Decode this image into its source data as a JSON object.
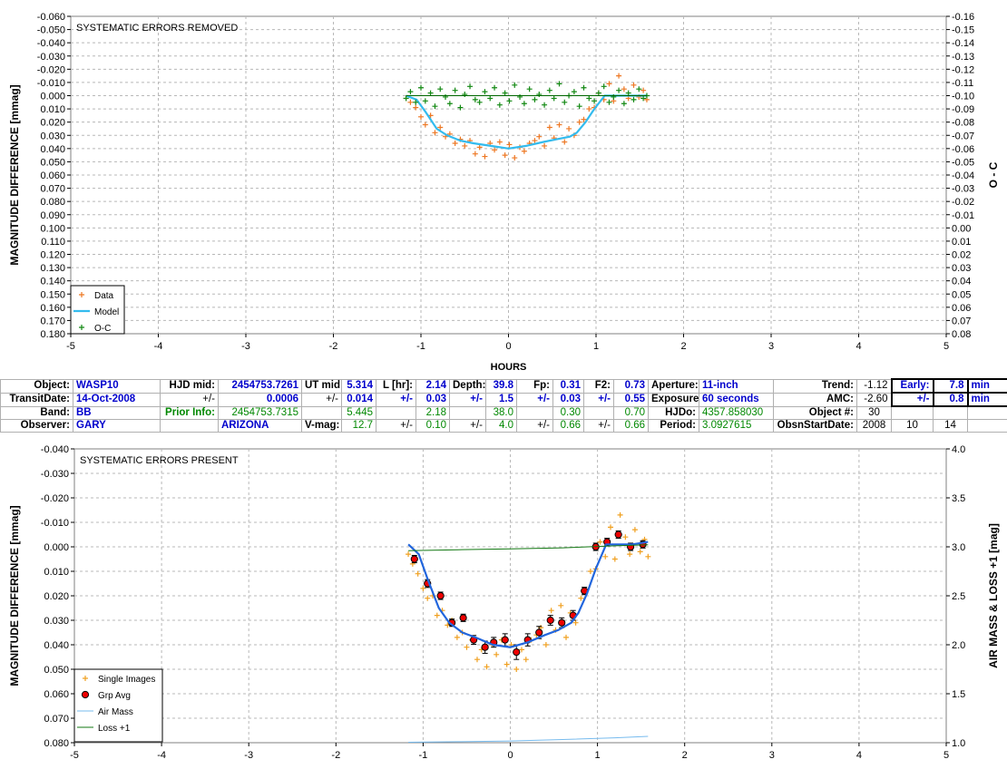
{
  "chart_data": [
    {
      "type": "scatter",
      "title": "SYSTEMATIC ERRORS REMOVED",
      "xlabel": "HOURS",
      "ylabel": "MAGNITUDE DIFFERENCE [mmag]",
      "y2label": "O - C",
      "xlim": [
        -5,
        5
      ],
      "ylim": [
        -0.06,
        0.18
      ],
      "y_inverted": true,
      "y2lim": [
        -0.16,
        0.08
      ],
      "y2_inverted": true,
      "grid": true,
      "legend_position": "bottom-left",
      "x_ticks": [
        "-5",
        "-4",
        "-3",
        "-2",
        "-1",
        "0",
        "1",
        "2",
        "3",
        "4",
        "5"
      ],
      "y_ticks": [
        "-0.060",
        "-0.050",
        "-0.040",
        "-0.030",
        "-0.020",
        "-0.010",
        "0.000",
        "0.010",
        "0.020",
        "0.030",
        "0.040",
        "0.050",
        "0.060",
        "0.070",
        "0.080",
        "0.090",
        "0.100",
        "0.110",
        "0.120",
        "0.130",
        "0.140",
        "0.150",
        "0.160",
        "0.170",
        "0.180"
      ],
      "y2_ticks": [
        "-0.16",
        "-0.15",
        "-0.14",
        "-0.13",
        "-0.12",
        "-0.11",
        "-0.10",
        "-0.09",
        "-0.08",
        "-0.07",
        "-0.06",
        "-0.05",
        "-0.04",
        "-0.03",
        "-0.02",
        "-0.01",
        "0.00",
        "0.01",
        "0.02",
        "0.03",
        "0.04",
        "0.05",
        "0.06",
        "0.07",
        "0.08"
      ],
      "series": [
        {
          "name": "Data",
          "color": "#ee7722",
          "marker": "plus",
          "x": [
            -1.17,
            -1.12,
            -1.06,
            -1.0,
            -0.95,
            -0.89,
            -0.84,
            -0.78,
            -0.72,
            -0.67,
            -0.61,
            -0.55,
            -0.5,
            -0.44,
            -0.38,
            -0.33,
            -0.27,
            -0.21,
            -0.16,
            -0.1,
            -0.04,
            0.01,
            0.07,
            0.13,
            0.18,
            0.24,
            0.3,
            0.35,
            0.41,
            0.47,
            0.52,
            0.58,
            0.64,
            0.69,
            0.75,
            0.81,
            0.86,
            0.92,
            0.98,
            1.03,
            1.09,
            1.15,
            1.2,
            1.26,
            1.32,
            1.37,
            1.43,
            1.49,
            1.54,
            1.58
          ],
          "y": [
            0.002,
            0.005,
            0.009,
            0.016,
            0.022,
            0.015,
            0.028,
            0.024,
            0.031,
            0.029,
            0.036,
            0.033,
            0.038,
            0.034,
            0.044,
            0.039,
            0.046,
            0.036,
            0.041,
            0.035,
            0.045,
            0.037,
            0.047,
            0.039,
            0.042,
            0.036,
            0.034,
            0.031,
            0.038,
            0.024,
            0.032,
            0.022,
            0.035,
            0.025,
            0.03,
            0.02,
            0.018,
            0.01,
            0.009,
            -0.002,
            0.003,
            -0.009,
            0.004,
            -0.015,
            -0.005,
            0.002,
            -0.008,
            0.001,
            -0.004,
            0.003
          ]
        },
        {
          "name": "Model",
          "color": "#33bbee",
          "marker": "line",
          "x": [
            -1.17,
            -1.05,
            -0.95,
            -0.82,
            -0.7,
            -0.55,
            -0.4,
            -0.2,
            0.0,
            0.2,
            0.4,
            0.55,
            0.7,
            0.78,
            0.88,
            0.98,
            1.1,
            1.2,
            1.4,
            1.58
          ],
          "y": [
            0.0,
            0.003,
            0.012,
            0.025,
            0.03,
            0.034,
            0.036,
            0.038,
            0.04,
            0.038,
            0.035,
            0.033,
            0.031,
            0.028,
            0.02,
            0.01,
            0.0,
            0.0,
            0.0,
            0.0
          ]
        },
        {
          "name": "O-C",
          "color": "#118811",
          "marker": "plus",
          "x": [
            -1.17,
            -1.12,
            -1.06,
            -1.0,
            -0.95,
            -0.89,
            -0.84,
            -0.78,
            -0.72,
            -0.67,
            -0.61,
            -0.55,
            -0.5,
            -0.44,
            -0.38,
            -0.33,
            -0.27,
            -0.21,
            -0.16,
            -0.1,
            -0.04,
            0.01,
            0.07,
            0.13,
            0.18,
            0.24,
            0.3,
            0.35,
            0.41,
            0.47,
            0.52,
            0.58,
            0.64,
            0.69,
            0.75,
            0.81,
            0.86,
            0.92,
            0.98,
            1.03,
            1.09,
            1.15,
            1.2,
            1.26,
            1.32,
            1.37,
            1.43,
            1.49,
            1.54,
            1.58
          ],
          "y": [
            0.002,
            -0.003,
            0.005,
            -0.006,
            0.004,
            -0.002,
            0.008,
            -0.005,
            0.001,
            0.006,
            -0.004,
            0.009,
            -0.001,
            -0.007,
            0.003,
            0.005,
            -0.003,
            0.002,
            -0.006,
            0.007,
            -0.002,
            0.004,
            -0.008,
            0.001,
            0.006,
            -0.005,
            0.003,
            -0.001,
            0.007,
            -0.004,
            0.002,
            -0.009,
            0.005,
            0.0,
            -0.003,
            0.008,
            -0.006,
            0.002,
            0.004,
            -0.002,
            -0.007,
            0.005,
            0.001,
            -0.004,
            0.006,
            -0.002,
            0.003,
            -0.005,
            0.002,
            0.0
          ]
        },
        {
          "name": "O-C baseline",
          "color": "#006600",
          "marker": "line",
          "x": [
            -1.17,
            1.58
          ],
          "y": [
            0.0,
            0.0
          ]
        }
      ]
    },
    {
      "type": "scatter",
      "title": "SYSTEMATIC ERRORS PRESENT",
      "xlabel": "",
      "ylabel": "MAGNITUDE DIFFERENCE [mmag]",
      "y2label": "AIR MASS & LOSS +1 [mag]",
      "xlim": [
        -5,
        5
      ],
      "ylim": [
        -0.04,
        0.08
      ],
      "y_inverted": true,
      "y2lim": [
        1.0,
        4.0
      ],
      "grid": true,
      "legend_position": "bottom-left",
      "x_ticks": [
        "-5",
        "-4",
        "-3",
        "-2",
        "-1",
        "0",
        "1",
        "2",
        "3",
        "4",
        "5"
      ],
      "y_ticks": [
        "-0.040",
        "-0.030",
        "-0.020",
        "-0.010",
        "0.000",
        "0.010",
        "0.020",
        "0.030",
        "0.040",
        "0.050",
        "0.060",
        "0.070",
        "0.080"
      ],
      "y2_ticks": [
        "1.0",
        "1.5",
        "2.0",
        "2.5",
        "3.0",
        "3.5",
        "4.0"
      ],
      "series": [
        {
          "name": "Single Images",
          "color": "#f0a020",
          "marker": "plus",
          "x": [
            -1.17,
            -1.12,
            -1.06,
            -1.0,
            -0.95,
            -0.89,
            -0.84,
            -0.78,
            -0.72,
            -0.67,
            -0.61,
            -0.55,
            -0.5,
            -0.44,
            -0.38,
            -0.33,
            -0.27,
            -0.21,
            -0.16,
            -0.1,
            -0.04,
            0.01,
            0.07,
            0.13,
            0.18,
            0.24,
            0.3,
            0.35,
            0.41,
            0.47,
            0.52,
            0.58,
            0.64,
            0.69,
            0.75,
            0.81,
            0.86,
            0.92,
            0.98,
            1.03,
            1.09,
            1.15,
            1.2,
            1.26,
            1.32,
            1.37,
            1.43,
            1.49,
            1.54,
            1.58
          ],
          "y": [
            0.003,
            0.007,
            0.011,
            0.017,
            0.021,
            0.02,
            0.028,
            0.026,
            0.032,
            0.03,
            0.037,
            0.035,
            0.041,
            0.038,
            0.046,
            0.042,
            0.049,
            0.04,
            0.044,
            0.038,
            0.048,
            0.04,
            0.05,
            0.042,
            0.046,
            0.038,
            0.036,
            0.033,
            0.04,
            0.026,
            0.034,
            0.024,
            0.037,
            0.027,
            0.031,
            0.021,
            0.019,
            0.01,
            0.009,
            -0.002,
            0.004,
            -0.008,
            0.005,
            -0.013,
            -0.004,
            0.003,
            -0.007,
            0.002,
            -0.003,
            0.004
          ]
        },
        {
          "name": "Grp Avg",
          "color": "#ee0000",
          "marker": "circle",
          "x": [
            -1.1,
            -0.95,
            -0.8,
            -0.67,
            -0.54,
            -0.42,
            -0.29,
            -0.19,
            -0.06,
            0.07,
            0.2,
            0.33,
            0.46,
            0.59,
            0.72,
            0.85,
            0.98,
            1.11,
            1.24,
            1.38,
            1.52
          ],
          "y": [
            0.005,
            0.015,
            0.02,
            0.031,
            0.029,
            0.038,
            0.041,
            0.039,
            0.038,
            0.043,
            0.038,
            0.035,
            0.03,
            0.031,
            0.028,
            0.018,
            0.0,
            -0.002,
            -0.005,
            0.0,
            -0.001
          ],
          "err": [
            0.0015,
            0.0016,
            0.0015,
            0.0015,
            0.0015,
            0.0018,
            0.0025,
            0.002,
            0.0025,
            0.003,
            0.0025,
            0.0025,
            0.002,
            0.002,
            0.002,
            0.0015,
            0.0015,
            0.0015,
            0.0015,
            0.0015,
            0.0015
          ]
        },
        {
          "name": "Model",
          "color": "#2266dd",
          "marker": "line",
          "x": [
            -1.17,
            -1.05,
            -0.95,
            -0.82,
            -0.7,
            -0.55,
            -0.4,
            -0.2,
            0.0,
            0.2,
            0.4,
            0.55,
            0.7,
            0.78,
            0.88,
            0.98,
            1.1,
            1.2,
            1.4,
            1.58
          ],
          "y": [
            -0.001,
            0.003,
            0.013,
            0.025,
            0.031,
            0.035,
            0.037,
            0.04,
            0.041,
            0.039,
            0.036,
            0.034,
            0.031,
            0.027,
            0.019,
            0.009,
            -0.001,
            -0.001,
            -0.001,
            -0.002
          ]
        },
        {
          "name": "Air Mass",
          "color": "#77bbee",
          "marker": "line",
          "x": [
            -1.17,
            -0.6,
            0.0,
            0.6,
            1.2,
            1.58
          ],
          "y2": [
            1.005,
            1.01,
            1.018,
            1.032,
            1.05,
            1.065
          ]
        },
        {
          "name": "Loss +1",
          "color": "#117711",
          "marker": "line",
          "x": [
            -1.17,
            -0.6,
            0.0,
            0.6,
            1.2,
            1.58
          ],
          "y2": [
            2.96,
            2.97,
            2.98,
            2.99,
            3.01,
            3.02
          ]
        }
      ]
    }
  ],
  "legend1": {
    "data": "Data",
    "model": "Model",
    "oc": "O-C"
  },
  "legend2": {
    "single": "Single Images",
    "grp": "Grp Avg",
    "air": "Air Mass",
    "loss": "Loss +1"
  },
  "info": {
    "r1": {
      "object_l": "Object:",
      "object_v": "WASP10",
      "hjd_l": "HJD mid:",
      "hjd_v": "2454753.7261",
      "ut_l": "UT mid:",
      "ut_v": "5.314",
      "l_l": "L [hr]:",
      "l_v": "2.14",
      "depth_l": "Depth:",
      "depth_v": "39.8",
      "fp_l": "Fp:",
      "fp_v": "0.31",
      "f2_l": "F2:",
      "f2_v": "0.73",
      "ap_l": "Aperture:",
      "ap_v": "11-inch",
      "trend_l": "Trend:",
      "trend_v": "-1.12",
      "early_l": "Early:",
      "early_v": "7.8",
      "early_u": "min"
    },
    "r2": {
      "td_l": "TransitDate:",
      "td_v": "14-Oct-2008",
      "pm1": "+/-",
      "hjd_e": "0.0006",
      "pm2": "+/-",
      "ut_e": "0.014",
      "pm3": "+/-",
      "l_e": "0.03",
      "pm4": "+/-",
      "depth_e": "1.5",
      "pm5": "+/-",
      "fp_e": "0.03",
      "pm6": "+/-",
      "f2_e": "0.55",
      "exp_l": "Exposure:",
      "exp_v": "60 seconds",
      "amc_l": "AMC:",
      "amc_v": "-2.60",
      "pm7": "+/-",
      "early_e": "0.8",
      "early_u": "min"
    },
    "r3": {
      "band_l": "Band:",
      "band_v": "BB",
      "prior_l": "Prior Info:",
      "prior_v": "2454753.7315",
      "ut_p": "5.445",
      "l_p": "2.18",
      "depth_p": "38.0",
      "fp_p": "0.30",
      "f2_p": "0.70",
      "hjdo_l": "HJDo:",
      "hjdo_v": "4357.858030",
      "objn_l": "Object #:",
      "objn_v": "30"
    },
    "r4": {
      "obs_l": "Observer:",
      "obs_v": "GARY",
      "loc_v": "ARIZONA",
      "vmag_l": "V-mag:",
      "vmag_v": "12.7",
      "pm1": "+/-",
      "vmag_e": "0.10",
      "pm2": "+/-",
      "depth_e": "4.0",
      "pm3": "+/-",
      "fp_e": "0.66",
      "pm4": "+/-",
      "f2_e": "0.66",
      "per_l": "Period:",
      "per_v": "3.0927615",
      "osd_l": "ObsnStartDate:",
      "osd_y": "2008",
      "osd_m": "10",
      "osd_d": "14"
    }
  }
}
